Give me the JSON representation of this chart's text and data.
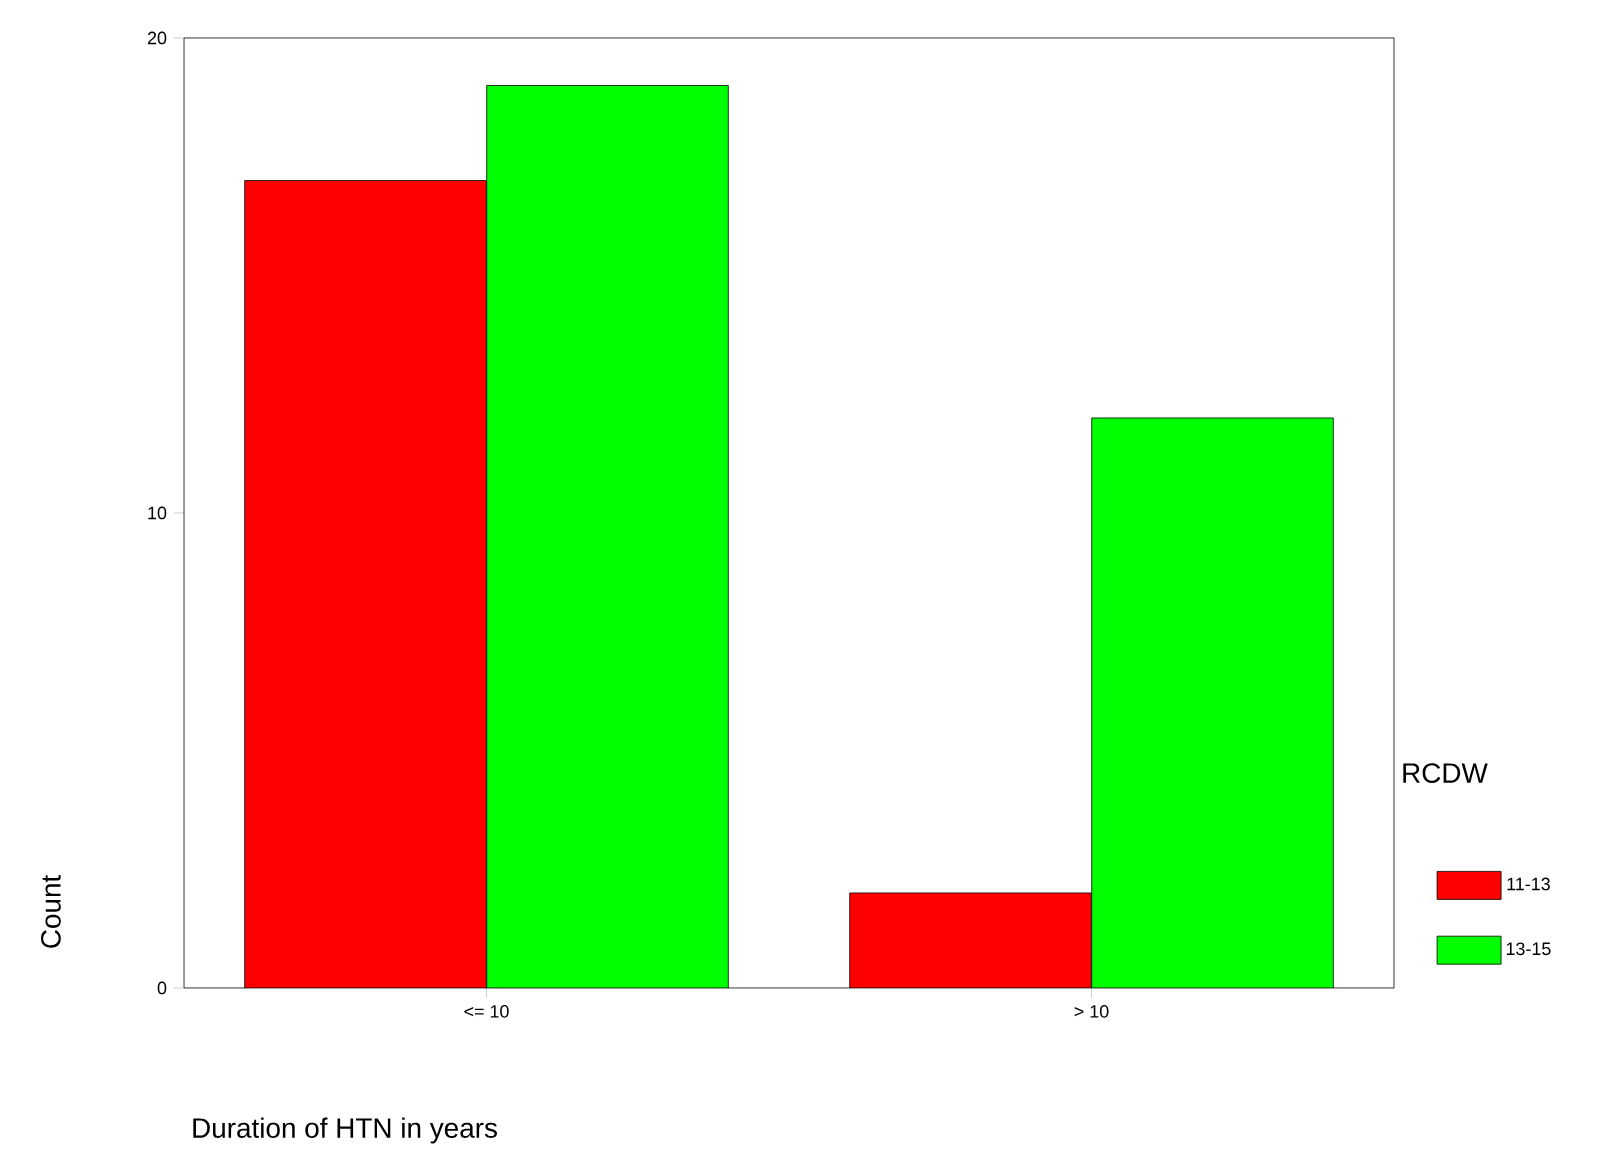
{
  "chart_data": {
    "type": "bar",
    "xlabel": "Duration of HTN in years",
    "ylabel": "Count",
    "legend_title": "RCDW",
    "categories": [
      "<= 10",
      "> 10"
    ],
    "series": [
      {
        "name": "11-13",
        "color": "#ff0000",
        "values": [
          17,
          2
        ]
      },
      {
        "name": "13-15",
        "color": "#00ff00",
        "values": [
          19,
          12
        ]
      }
    ],
    "ylim": [
      0,
      20
    ],
    "yticks": [
      0,
      10,
      20
    ],
    "grid": false,
    "legend": "right"
  }
}
